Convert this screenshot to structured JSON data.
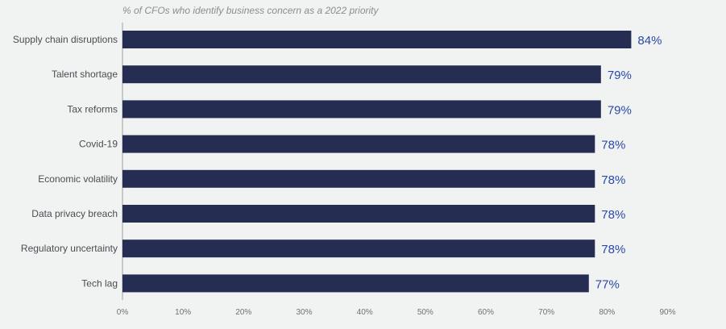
{
  "colors": {
    "background": "#f1f2f2",
    "bar": "#262d52",
    "value_label": "#2b49a8",
    "axis": "#9a9da2"
  },
  "chart_data": {
    "type": "bar",
    "orientation": "horizontal",
    "subtitle": "% of CFOs who identify business concern as a 2022 priority",
    "categories": [
      "Supply chain disruptions",
      "Talent shortage",
      "Tax reforms",
      "Covid-19",
      "Economic volatility",
      "Data privacy breach",
      "Regulatory uncertainty",
      "Tech lag"
    ],
    "values": [
      84,
      79,
      79,
      78,
      78,
      78,
      78,
      77
    ],
    "value_labels": [
      "84%",
      "79%",
      "79%",
      "78%",
      "78%",
      "78%",
      "78%",
      "77%"
    ],
    "xlim": [
      0,
      90
    ],
    "x_ticks": [
      0,
      10,
      20,
      30,
      40,
      50,
      60,
      70,
      80,
      90
    ],
    "x_tick_labels": [
      "0%",
      "10%",
      "20%",
      "30%",
      "40%",
      "50%",
      "60%",
      "70%",
      "80%",
      "90%"
    ],
    "grid": false,
    "legend": "none"
  }
}
